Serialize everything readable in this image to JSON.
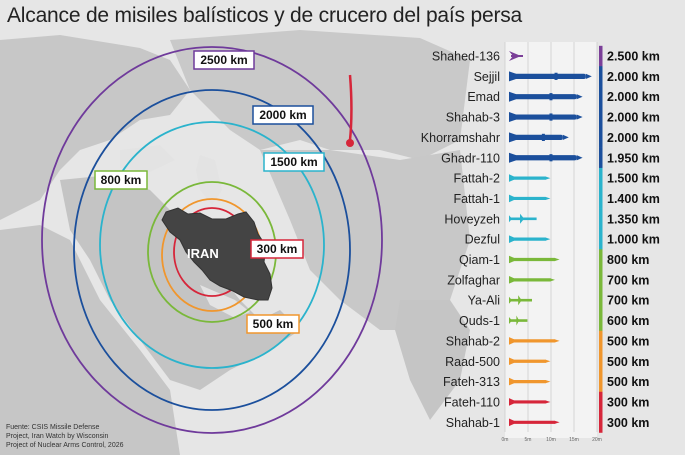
{
  "title": "Alcance de misiles balísticos y de crucero del país persa",
  "map": {
    "country_label": "IRAN",
    "rings": [
      {
        "label": "2500 km",
        "km": 2500,
        "color": "#6f3a9b"
      },
      {
        "label": "2000 km",
        "km": 2000,
        "color": "#1b4f9c"
      },
      {
        "label": "1500 km",
        "km": 1500,
        "color": "#2bb3cc"
      },
      {
        "label": "800 km",
        "km": 800,
        "color": "#7ab83a"
      },
      {
        "label": "500 km",
        "km": 500,
        "color": "#f0962d"
      },
      {
        "label": "300 km",
        "km": 300,
        "color": "#d6263a"
      }
    ]
  },
  "missiles": [
    {
      "name": "Shahed-136",
      "range": "2.500 km",
      "km": 2500,
      "length_m": 3.5,
      "color": "#7b3f98",
      "kind": "drone"
    },
    {
      "name": "Sejjil",
      "range": "2.000 km",
      "km": 2000,
      "length_m": 18,
      "color": "#1b4f9c",
      "kind": "big"
    },
    {
      "name": "Emad",
      "range": "2.000 km",
      "km": 2000,
      "length_m": 16,
      "color": "#1b4f9c",
      "kind": "big"
    },
    {
      "name": "Shahab-3",
      "range": "2.000 km",
      "km": 2000,
      "length_m": 16,
      "color": "#1b4f9c",
      "kind": "big"
    },
    {
      "name": "Khorramshahr",
      "range": "2.000 km",
      "km": 2000,
      "length_m": 13,
      "color": "#1b4f9c",
      "kind": "big"
    },
    {
      "name": "Ghadr-110",
      "range": "1.950 km",
      "km": 1950,
      "length_m": 16,
      "color": "#1b4f9c",
      "kind": "big"
    },
    {
      "name": "Fattah-2",
      "range": "1.500 km",
      "km": 1500,
      "length_m": 9,
      "color": "#2bb3cc",
      "kind": "thin"
    },
    {
      "name": "Fattah-1",
      "range": "1.400 km",
      "km": 1400,
      "length_m": 9,
      "color": "#2bb3cc",
      "kind": "thin"
    },
    {
      "name": "Hoveyzeh",
      "range": "1.350 km",
      "km": 1350,
      "length_m": 6,
      "color": "#2bb3cc",
      "kind": "cruise"
    },
    {
      "name": "Dezful",
      "range": "1.000 km",
      "km": 1000,
      "length_m": 9,
      "color": "#2bb3cc",
      "kind": "thin"
    },
    {
      "name": "Qiam-1",
      "range": "800 km",
      "km": 800,
      "length_m": 11,
      "color": "#7ab83a",
      "kind": "thin"
    },
    {
      "name": "Zolfaghar",
      "range": "700 km",
      "km": 700,
      "length_m": 10,
      "color": "#7ab83a",
      "kind": "thin"
    },
    {
      "name": "Ya-Ali",
      "range": "700 km",
      "km": 700,
      "length_m": 5,
      "color": "#7ab83a",
      "kind": "cruise"
    },
    {
      "name": "Quds-1",
      "range": "600 km",
      "km": 600,
      "length_m": 4,
      "color": "#7ab83a",
      "kind": "cruise"
    },
    {
      "name": "Shahab-2",
      "range": "500 km",
      "km": 500,
      "length_m": 11,
      "color": "#f0962d",
      "kind": "thin"
    },
    {
      "name": "Raad-500",
      "range": "500 km",
      "km": 500,
      "length_m": 9,
      "color": "#f0962d",
      "kind": "thin"
    },
    {
      "name": "Fateh-313",
      "range": "500 km",
      "km": 500,
      "length_m": 9,
      "color": "#f0962d",
      "kind": "thin"
    },
    {
      "name": "Fateh-110",
      "range": "300 km",
      "km": 300,
      "length_m": 9,
      "color": "#d6263a",
      "kind": "thin"
    },
    {
      "name": "Shahab-1",
      "range": "300 km",
      "km": 300,
      "length_m": 11,
      "color": "#d6263a",
      "kind": "thin"
    }
  ],
  "length_scale": {
    "ticks": [
      "0m",
      "5m",
      "10m",
      "15m",
      "20m"
    ],
    "max_m": 20
  },
  "source": [
    "Fuente: CSIS Missile Defense",
    "Project, Iran Watch by Wisconsin",
    "Project of Nuclear Arms Control, 2026"
  ]
}
